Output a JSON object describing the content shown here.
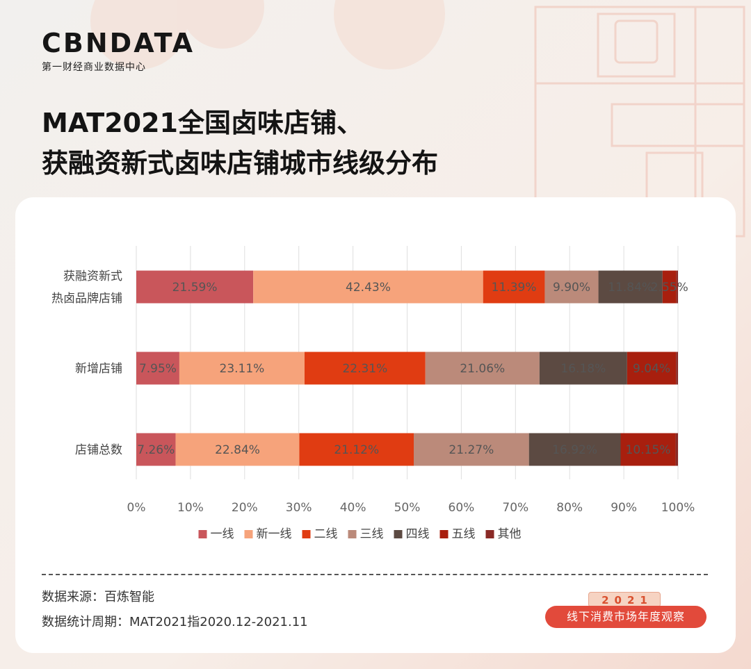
{
  "brand": {
    "name": "CBNDATA",
    "subtitle": "第一财经商业数据中心"
  },
  "title_lines": [
    "MAT2021全国卤味店铺、",
    "获融资新式卤味店铺城市线级分布"
  ],
  "chart_data": {
    "type": "bar",
    "orientation": "horizontal",
    "stacked": true,
    "categories": [
      [
        "获融资新式",
        "热卤品牌店铺"
      ],
      [
        "新增店铺"
      ],
      [
        "店铺总数"
      ]
    ],
    "series": [
      {
        "name": "一线",
        "color": "#c9565b",
        "values": [
          21.59,
          7.95,
          7.26
        ],
        "labels": [
          "21.59%",
          "7.95%",
          "7.26%"
        ]
      },
      {
        "name": "新一线",
        "color": "#f6a37b",
        "values": [
          42.43,
          23.11,
          22.84
        ],
        "labels": [
          "42.43%",
          "23.11%",
          "22.84%"
        ]
      },
      {
        "name": "二线",
        "color": "#e03c12",
        "values": [
          11.39,
          22.31,
          21.12
        ],
        "labels": [
          "11.39%",
          "22.31%",
          "21.12%"
        ]
      },
      {
        "name": "三线",
        "color": "#bb8a7a",
        "values": [
          9.9,
          21.06,
          21.27
        ],
        "labels": [
          "9.90%",
          "21.06%",
          "21.27%"
        ]
      },
      {
        "name": "四线",
        "color": "#5c4a42",
        "values": [
          11.84,
          16.18,
          16.92
        ],
        "labels": [
          "11.84%",
          "16.18%",
          "16.92%"
        ]
      },
      {
        "name": "五线",
        "color": "#a81f0e",
        "values": [
          2.55,
          9.04,
          10.15
        ],
        "labels": [
          "2.55%",
          "9.04%",
          "10.15%"
        ]
      },
      {
        "name": "其他",
        "color": "#8a2a26",
        "values": [
          0.3,
          0.35,
          0.44
        ],
        "labels": [
          "",
          "",
          ""
        ]
      }
    ],
    "xlim": [
      0,
      100
    ],
    "xticks": [
      "0%",
      "10%",
      "20%",
      "30%",
      "40%",
      "50%",
      "60%",
      "70%",
      "80%",
      "90%",
      "100%"
    ],
    "legend_position": "bottom",
    "grid": "vertical"
  },
  "footer": {
    "source": "数据来源：百炼智能",
    "period": "数据统计周期：MAT2021指2020.12-2021.11"
  },
  "badge": {
    "year": "2021",
    "label": "线下消费市场年度观察"
  }
}
